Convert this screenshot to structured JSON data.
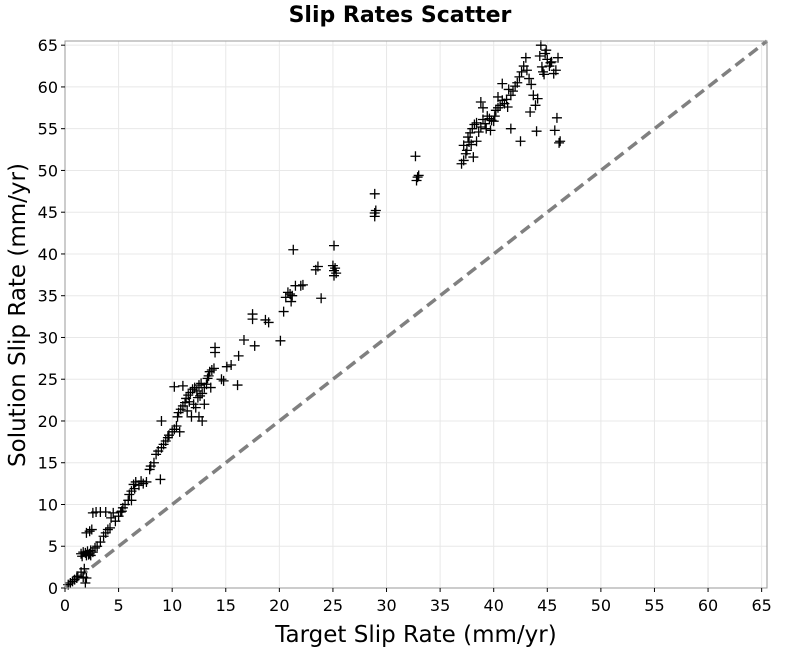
{
  "chart_data": {
    "type": "scatter",
    "title": "Slip Rates Scatter",
    "xlabel": "Target Slip Rate (mm/yr)",
    "ylabel": "Solution Slip Rate (mm/yr)",
    "xlim": [
      0,
      65.5
    ],
    "ylim": [
      0,
      65.5
    ],
    "xticks": [
      0,
      5,
      10,
      15,
      20,
      25,
      30,
      35,
      40,
      45,
      50,
      55,
      60,
      65
    ],
    "yticks": [
      0,
      5,
      10,
      15,
      20,
      25,
      30,
      35,
      40,
      45,
      50,
      55,
      60,
      65
    ],
    "grid": true,
    "marker": "plus",
    "colors": {
      "points": "#000000",
      "reference_line": "#808080",
      "grid": "#e8e8e8",
      "frame": "#999999"
    },
    "reference_line": {
      "style": "dashed",
      "from": [
        0,
        0
      ],
      "to": [
        65.5,
        65.5
      ]
    },
    "points": [
      [
        0.3,
        0.4
      ],
      [
        0.5,
        0.6
      ],
      [
        0.7,
        0.8
      ],
      [
        0.9,
        1.0
      ],
      [
        1.1,
        1.2
      ],
      [
        1.2,
        1.4
      ],
      [
        1.5,
        1.9
      ],
      [
        1.5,
        4.1
      ],
      [
        1.7,
        4.3
      ],
      [
        1.9,
        4.2
      ],
      [
        2.1,
        4.4
      ],
      [
        2.3,
        4.1
      ],
      [
        2.4,
        4.5
      ],
      [
        2.6,
        4.3
      ],
      [
        1.6,
        3.8
      ],
      [
        2.0,
        3.9
      ],
      [
        2.2,
        4.0
      ],
      [
        2.4,
        3.9
      ],
      [
        1.8,
        2.3
      ],
      [
        1.7,
        1.3
      ],
      [
        2.0,
        1.2
      ],
      [
        1.9,
        0.6
      ],
      [
        2.0,
        6.6
      ],
      [
        2.3,
        6.8
      ],
      [
        2.5,
        7.0
      ],
      [
        2.6,
        9.0
      ],
      [
        2.9,
        9.1
      ],
      [
        3.3,
        9.1
      ],
      [
        2.8,
        4.8
      ],
      [
        3.0,
        5.0
      ],
      [
        3.3,
        5.5
      ],
      [
        3.6,
        6.2
      ],
      [
        3.8,
        6.6
      ],
      [
        4.0,
        7.0
      ],
      [
        4.2,
        7.2
      ],
      [
        4.3,
        8.4
      ],
      [
        4.5,
        9.0
      ],
      [
        3.8,
        9.1
      ],
      [
        4.7,
        8.0
      ],
      [
        5.0,
        8.6
      ],
      [
        5.2,
        9.1
      ],
      [
        5.4,
        9.6
      ],
      [
        5.6,
        10.0
      ],
      [
        5.9,
        10.5
      ],
      [
        6.0,
        11.2
      ],
      [
        6.2,
        11.6
      ],
      [
        6.4,
        12.4
      ],
      [
        6.5,
        11.9
      ],
      [
        6.6,
        12.7
      ],
      [
        6.9,
        12.3
      ],
      [
        7.1,
        12.8
      ],
      [
        7.3,
        12.5
      ],
      [
        7.6,
        12.7
      ],
      [
        6.2,
        10.5
      ],
      [
        5.3,
        9.2
      ],
      [
        7.9,
        14.2
      ],
      [
        8.0,
        14.6
      ],
      [
        8.3,
        15.0
      ],
      [
        8.5,
        16.0
      ],
      [
        8.7,
        16.4
      ],
      [
        9.0,
        16.8
      ],
      [
        9.2,
        17.2
      ],
      [
        9.4,
        17.6
      ],
      [
        9.6,
        18.0
      ],
      [
        8.9,
        13.0
      ],
      [
        9.0,
        20.0
      ],
      [
        9.7,
        18.3
      ],
      [
        10.0,
        18.7
      ],
      [
        10.2,
        19.0
      ],
      [
        10.4,
        19.4
      ],
      [
        10.5,
        20.5
      ],
      [
        10.6,
        21.0
      ],
      [
        10.8,
        21.4
      ],
      [
        11.0,
        21.8
      ],
      [
        11.2,
        22.2
      ],
      [
        10.7,
        18.7
      ],
      [
        10.2,
        24.1
      ],
      [
        11.0,
        24.2
      ],
      [
        11.3,
        22.7
      ],
      [
        11.5,
        23.1
      ],
      [
        11.7,
        23.4
      ],
      [
        11.9,
        23.8
      ],
      [
        12.1,
        24.0
      ],
      [
        12.3,
        23.6
      ],
      [
        12.5,
        24.3
      ],
      [
        12.7,
        24.5
      ],
      [
        12.0,
        22.0
      ],
      [
        11.6,
        22.3
      ],
      [
        11.4,
        21.2
      ],
      [
        11.8,
        20.5
      ],
      [
        12.2,
        21.6
      ],
      [
        12.4,
        22.8
      ],
      [
        12.6,
        23.0
      ],
      [
        12.8,
        23.3
      ],
      [
        13.0,
        24.0
      ],
      [
        13.2,
        24.4
      ],
      [
        13.4,
        25.4
      ],
      [
        13.5,
        25.9
      ],
      [
        13.7,
        26.1
      ],
      [
        13.9,
        26.3
      ],
      [
        13.0,
        22.0
      ],
      [
        12.8,
        20.0
      ],
      [
        12.5,
        20.5
      ],
      [
        13.3,
        25.1
      ],
      [
        13.6,
        24.0
      ],
      [
        14.0,
        28.2
      ],
      [
        14.0,
        28.8
      ],
      [
        14.6,
        25.0
      ],
      [
        14.8,
        24.8
      ],
      [
        15.1,
        26.5
      ],
      [
        15.5,
        26.7
      ],
      [
        16.1,
        24.3
      ],
      [
        16.2,
        27.8
      ],
      [
        16.7,
        29.7
      ],
      [
        17.5,
        32.2
      ],
      [
        17.5,
        32.8
      ],
      [
        17.7,
        29.0
      ],
      [
        18.7,
        32.1
      ],
      [
        19.0,
        31.8
      ],
      [
        20.1,
        29.6
      ],
      [
        20.4,
        33.1
      ],
      [
        20.6,
        34.8
      ],
      [
        20.8,
        35.4
      ],
      [
        21.0,
        35.2
      ],
      [
        21.2,
        35.0
      ],
      [
        21.5,
        36.2
      ],
      [
        22.0,
        36.2
      ],
      [
        21.1,
        34.3
      ],
      [
        21.3,
        40.5
      ],
      [
        22.2,
        36.3
      ],
      [
        23.4,
        38.1
      ],
      [
        23.6,
        38.5
      ],
      [
        23.9,
        34.7
      ],
      [
        25.0,
        38.6
      ],
      [
        25.1,
        38.0
      ],
      [
        25.2,
        38.3
      ],
      [
        25.3,
        37.7
      ],
      [
        25.1,
        37.4
      ],
      [
        25.1,
        41.0
      ],
      [
        28.9,
        44.5
      ],
      [
        28.9,
        44.9
      ],
      [
        29.0,
        45.2
      ],
      [
        28.9,
        47.2
      ],
      [
        32.8,
        48.8
      ],
      [
        32.9,
        49.2
      ],
      [
        33.0,
        49.4
      ],
      [
        32.7,
        51.7
      ],
      [
        37.0,
        50.8
      ],
      [
        37.2,
        51.2
      ],
      [
        37.4,
        52.0
      ],
      [
        37.5,
        52.4
      ],
      [
        37.2,
        53.0
      ],
      [
        37.7,
        53.4
      ],
      [
        37.9,
        53.1
      ],
      [
        38.1,
        51.6
      ],
      [
        37.8,
        54.5
      ],
      [
        38.0,
        55.0
      ],
      [
        38.2,
        55.5
      ],
      [
        38.4,
        55.7
      ],
      [
        38.6,
        54.6
      ],
      [
        38.8,
        55.2
      ],
      [
        39.0,
        56.1
      ],
      [
        39.2,
        55.6
      ],
      [
        39.4,
        56.5
      ],
      [
        39.6,
        56.2
      ],
      [
        39.8,
        56.0
      ],
      [
        40.0,
        55.9
      ],
      [
        40.2,
        57.2
      ],
      [
        40.4,
        57.5
      ],
      [
        40.6,
        57.8
      ],
      [
        40.8,
        58.4
      ],
      [
        41.0,
        58.0
      ],
      [
        41.2,
        58.5
      ],
      [
        41.4,
        59.7
      ],
      [
        41.6,
        59.0
      ],
      [
        41.8,
        59.5
      ],
      [
        42.0,
        60.1
      ],
      [
        42.2,
        60.5
      ],
      [
        42.4,
        61.2
      ],
      [
        42.6,
        61.8
      ],
      [
        42.8,
        62.5
      ],
      [
        43.0,
        63.5
      ],
      [
        43.1,
        62.0
      ],
      [
        43.3,
        61.0
      ],
      [
        43.5,
        60.3
      ],
      [
        43.7,
        59.0
      ],
      [
        43.9,
        57.8
      ],
      [
        44.1,
        58.6
      ],
      [
        44.3,
        63.7
      ],
      [
        44.5,
        62.4
      ],
      [
        44.6,
        61.8
      ],
      [
        44.8,
        64.0
      ],
      [
        45.0,
        63.3
      ],
      [
        45.2,
        62.5
      ],
      [
        45.4,
        63.0
      ],
      [
        45.6,
        61.6
      ],
      [
        45.8,
        62.0
      ],
      [
        46.0,
        63.5
      ],
      [
        45.9,
        56.3
      ],
      [
        45.7,
        54.8
      ],
      [
        46.2,
        53.5
      ],
      [
        46.1,
        53.3
      ],
      [
        44.0,
        54.7
      ],
      [
        42.5,
        53.5
      ],
      [
        41.6,
        55.0
      ],
      [
        40.4,
        58.8
      ],
      [
        40.1,
        56.5
      ],
      [
        39.0,
        57.5
      ],
      [
        39.7,
        54.8
      ],
      [
        38.8,
        58.2
      ],
      [
        37.6,
        54.0
      ],
      [
        38.4,
        53.5
      ],
      [
        39.3,
        55.0
      ],
      [
        40.8,
        60.4
      ],
      [
        41.3,
        57.6
      ],
      [
        43.4,
        57.0
      ],
      [
        44.4,
        65.0
      ],
      [
        44.9,
        64.4
      ],
      [
        45.3,
        62.9
      ],
      [
        44.7,
        61.5
      ]
    ]
  }
}
